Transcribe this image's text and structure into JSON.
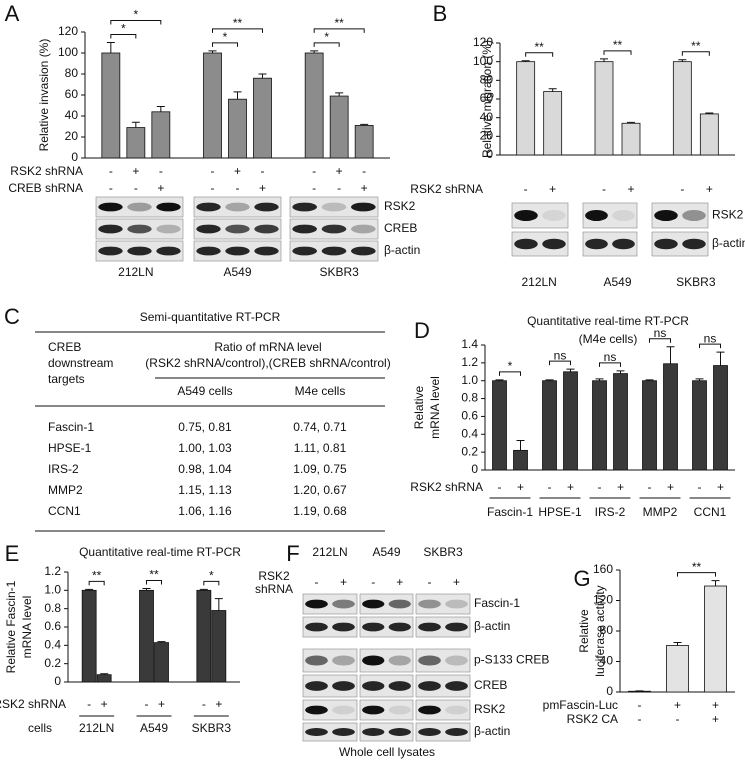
{
  "chart_data": [
    {
      "type": "bar",
      "label": "A",
      "ylabel": [
        "Relative invasion (%)"
      ],
      "ylim": [
        0,
        120
      ],
      "yticks": [
        0,
        20,
        40,
        60,
        80,
        100,
        120
      ],
      "color": "#8c8c8c",
      "values": [
        100,
        29,
        44,
        100,
        56,
        76,
        100,
        59,
        31
      ],
      "errors": [
        10,
        5,
        5,
        2,
        7,
        4,
        2,
        3,
        1
      ],
      "treatments": [
        {
          "name": "RSK2 shRNA",
          "signs": [
            "-",
            "+",
            "-",
            "-",
            "+",
            "-",
            "-",
            "+",
            "-"
          ]
        },
        {
          "name": "CREB shRNA",
          "signs": [
            "-",
            "-",
            "+",
            "-",
            "-",
            "+",
            "-",
            "-",
            "+"
          ]
        }
      ],
      "groups": [
        "212LN",
        "A549",
        "SKBR3"
      ],
      "significance": [
        [
          "*",
          "*"
        ],
        [
          "*",
          "**"
        ],
        [
          "*",
          "**"
        ]
      ],
      "blot_labels": [
        "RSK2",
        "CREB",
        "β-actin"
      ]
    },
    {
      "type": "bar",
      "label": "B",
      "ylabel": [
        "Relative migration (%)"
      ],
      "ylim": [
        0,
        120
      ],
      "yticks": [
        0,
        20,
        40,
        60,
        80,
        100,
        120
      ],
      "color": "#d9d9d9",
      "values": [
        100,
        68,
        100,
        34,
        100,
        44
      ],
      "errors": [
        1,
        3,
        3,
        1,
        2,
        1
      ],
      "treatments": [
        {
          "name": "RSK2 shRNA",
          "signs": [
            "-",
            "+",
            "-",
            "+",
            "-",
            "+"
          ]
        }
      ],
      "groups": [
        "212LN",
        "A549",
        "SKBR3"
      ],
      "significance": [
        [
          "**"
        ],
        [
          "**"
        ],
        [
          "**"
        ]
      ],
      "blot_labels": [
        "RSK2",
        "β-actin"
      ]
    },
    {
      "type": "bar",
      "label": "D",
      "title": "Quantitative real-time RT-PCR",
      "subtitle": "(M4e cells)",
      "ylabel": [
        "Relative",
        "mRNA level"
      ],
      "ylim": [
        0,
        1.4
      ],
      "yticks": [
        0,
        0.2,
        0.4,
        0.6,
        0.8,
        {
          "value": 1,
          "label": "1.0"
        },
        1.2,
        1.4
      ],
      "color": "#3a3a3a",
      "values": [
        1.0,
        0.22,
        1.0,
        1.1,
        1.0,
        1.08,
        1.0,
        1.19,
        1.0,
        1.17
      ],
      "errors": [
        0.01,
        0.11,
        0.01,
        0.03,
        0.02,
        0.03,
        0.01,
        0.19,
        0.02,
        0.15
      ],
      "treatments": [
        {
          "name": "RSK2 shRNA",
          "signs": [
            "-",
            "+",
            "-",
            "+",
            "-",
            "+",
            "-",
            "+",
            "-",
            "+"
          ]
        }
      ],
      "groups": [
        "Fascin-1",
        "HPSE-1",
        "IRS-2",
        "MMP2",
        "CCN1"
      ],
      "significance": [
        [
          "*"
        ],
        [
          "ns"
        ],
        [
          "ns"
        ],
        [
          "ns"
        ],
        [
          "ns"
        ]
      ]
    },
    {
      "type": "bar",
      "label": "E",
      "title": "Quantitative real-time RT-PCR",
      "ylabel": [
        "Relative Fascin-1",
        "mRNA level"
      ],
      "ylim": [
        0,
        1.2
      ],
      "yticks": [
        0,
        0.2,
        0.4,
        0.6,
        0.8,
        {
          "value": 1,
          "label": "1.0"
        },
        1.2
      ],
      "color": "#3a3a3a",
      "values": [
        1.0,
        0.08,
        1.0,
        0.43,
        1.0,
        0.78
      ],
      "errors": [
        0.01,
        0.01,
        0.02,
        0.01,
        0.01,
        0.13
      ],
      "treatments": [
        {
          "name": "RSK2 shRNA",
          "signs": [
            "-",
            "+",
            "-",
            "+",
            "-",
            "+"
          ]
        }
      ],
      "group_title": "cells",
      "groups": [
        "212LN",
        "A549",
        "SKBR3"
      ],
      "significance": [
        [
          "**"
        ],
        [
          "**"
        ],
        [
          "*"
        ]
      ]
    },
    {
      "type": "bar",
      "label": "G",
      "ylabel": [
        "Relative",
        "luciferase activity"
      ],
      "ylim": [
        0,
        160
      ],
      "yticks": [
        0,
        40,
        80,
        120,
        160
      ],
      "color": "#e3e3e3",
      "values": [
        1,
        61,
        139
      ],
      "errors": [
        0.5,
        4,
        7
      ],
      "treatments": [
        {
          "name": "pmFascin-Luc",
          "signs": [
            "-",
            "+",
            "+"
          ]
        },
        {
          "name": "RSK2 CA",
          "signs": [
            "-",
            "-",
            "+"
          ]
        }
      ],
      "significance": [
        [
          "**"
        ]
      ]
    }
  ],
  "panel_c": {
    "label": "C",
    "title": "Semi-quantitative RT-PCR",
    "header": {
      "row_label": [
        "CREB",
        "downstream",
        "targets"
      ],
      "span": [
        "Ratio of mRNA level",
        "(RSK2 shRNA/control),(CREB shRNA/control)"
      ],
      "columns": [
        "A549 cells",
        "M4e cells"
      ]
    },
    "rows": [
      [
        "Fascin-1",
        "0.75, 0.81",
        "0.74, 0.71"
      ],
      [
        "HPSE-1",
        "1.00, 1.03",
        "1.11, 0.81"
      ],
      [
        "IRS-2",
        "0.98, 1.04",
        "1.09, 0.75"
      ],
      [
        "MMP2",
        "1.15, 1.13",
        "1.20, 0.67"
      ],
      [
        "CCN1",
        "1.06, 1.16",
        "1.19, 0.68"
      ]
    ]
  },
  "panel_f": {
    "label": "F",
    "cells": [
      "212LN",
      "A549",
      "SKBR3"
    ],
    "treatment": [
      "RSK2",
      "shRNA"
    ],
    "signs": [
      "-",
      "+",
      "-",
      "+",
      "-",
      "+"
    ],
    "bands": [
      "Fascin-1",
      "β-actin",
      "p-S133 CREB",
      "CREB",
      "RSK2",
      "β-actin"
    ],
    "footer": "Whole cell lysates"
  }
}
